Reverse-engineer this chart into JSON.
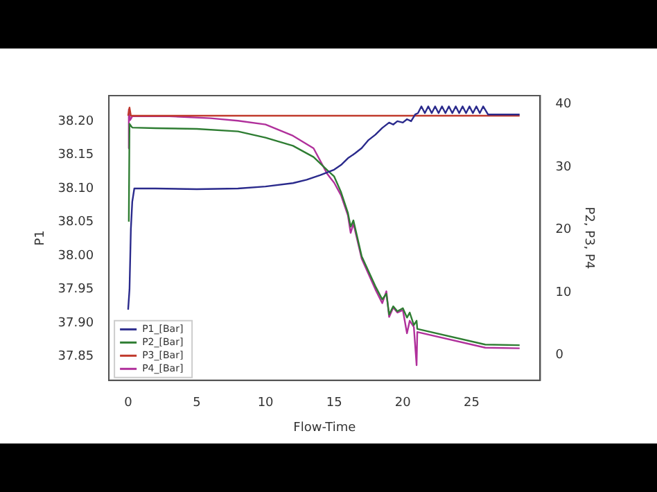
{
  "chart_data": {
    "type": "line",
    "xlabel": "Flow-Time",
    "ylabel": "P1",
    "y2label": "P2, P3, P4",
    "legend": "bottom left",
    "grid": false,
    "marker": "none",
    "line_style": "solid",
    "xlim": [
      -1.4,
      30
    ],
    "xticks": [
      0,
      5,
      10,
      15,
      20,
      25
    ],
    "ylim": [
      37.815,
      38.238
    ],
    "yticks": [
      {
        "value": 37.85,
        "label": "37.85"
      },
      {
        "value": 37.9,
        "label": "37.90"
      },
      {
        "value": 37.95,
        "label": "37.95"
      },
      {
        "value": 38,
        "label": "38.00"
      },
      {
        "value": 38.05,
        "label": "38.05"
      },
      {
        "value": 38.1,
        "label": "38.10"
      },
      {
        "value": 38.15,
        "label": "38.15"
      },
      {
        "value": 38.2,
        "label": "38.20"
      }
    ],
    "y2lim": [
      -4,
      41.4
    ],
    "y2ticks": [
      0,
      10,
      20,
      30,
      40
    ],
    "series": [
      {
        "name": "P1_[Bar]",
        "color": "#2a2a8c",
        "x": [
          0,
          0.1,
          0.2,
          0.3,
          0.45,
          2,
          5,
          8,
          10,
          12,
          13,
          14,
          15,
          15.5,
          16,
          16.5,
          17,
          17.5,
          18,
          18.5,
          19,
          19.3,
          19.6,
          20,
          20.3,
          20.6,
          20.9,
          21.1,
          21.35,
          21.6,
          21.85,
          22.1,
          22.35,
          22.6,
          22.85,
          23.1,
          23.35,
          23.6,
          23.85,
          24.1,
          24.35,
          24.6,
          24.85,
          25.1,
          25.35,
          25.6,
          25.85,
          26.2,
          28.5
        ],
        "values": [
          37.92,
          37.95,
          38.04,
          38.08,
          38.1,
          38.1,
          38.099,
          38.1,
          38.103,
          38.108,
          38.113,
          38.12,
          38.128,
          38.135,
          38.145,
          38.152,
          38.16,
          38.172,
          38.18,
          38.19,
          38.198,
          38.195,
          38.2,
          38.198,
          38.203,
          38.2,
          38.21,
          38.212,
          38.222,
          38.212,
          38.222,
          38.212,
          38.222,
          38.212,
          38.222,
          38.212,
          38.222,
          38.212,
          38.222,
          38.212,
          38.222,
          38.212,
          38.222,
          38.212,
          38.222,
          38.212,
          38.222,
          38.21,
          38.21
        ]
      },
      {
        "name": "P2_[Bar]",
        "color": "#2e7d32",
        "axis": "y2",
        "x": [
          0.05,
          0.1,
          0.3,
          2,
          5,
          8,
          10,
          12,
          13.5,
          14.5,
          15,
          15.5,
          16,
          16.2,
          16.4,
          17,
          18,
          18.5,
          18.8,
          19,
          19.3,
          19.6,
          20,
          20.3,
          20.5,
          20.8,
          21,
          21.05,
          26,
          28.5
        ],
        "values": [
          21.3,
          36.9,
          36.3,
          36.2,
          36.1,
          35.7,
          34.7,
          33.4,
          31.6,
          29.5,
          28.5,
          26,
          22.7,
          20.5,
          21.5,
          15.8,
          11,
          8.9,
          9.8,
          6.5,
          7.8,
          7,
          7.5,
          6,
          6.8,
          4.8,
          5.5,
          4.2,
          1.7,
          1.6
        ]
      },
      {
        "name": "P3_[Bar]",
        "color": "#c0392b",
        "axis": "y2",
        "x": [
          0,
          0.1,
          0.2,
          28.5
        ],
        "values": [
          38.2,
          39.5,
          38.2,
          38.2
        ]
      },
      {
        "name": "P4_[Bar]",
        "color": "#b0309b",
        "axis": "y2",
        "x": [
          0,
          0.05,
          0.15,
          0.3,
          3,
          6,
          8,
          10,
          12,
          13.5,
          14.5,
          15,
          15.5,
          16,
          16.2,
          16.4,
          17,
          18,
          18.5,
          18.8,
          19,
          19.3,
          19.6,
          20,
          20.3,
          20.5,
          20.8,
          21,
          21.05,
          26,
          28.5
        ],
        "values": [
          33,
          39.2,
          37.5,
          38.1,
          38.1,
          37.8,
          37.4,
          36.8,
          35,
          33,
          28.9,
          27.5,
          25.5,
          22.3,
          19.5,
          21,
          15.4,
          10.5,
          8.3,
          10.2,
          6.1,
          7.6,
          6.8,
          7.2,
          3.5,
          5.5,
          4.5,
          -1.6,
          3.7,
          1.2,
          1.1
        ]
      }
    ]
  }
}
